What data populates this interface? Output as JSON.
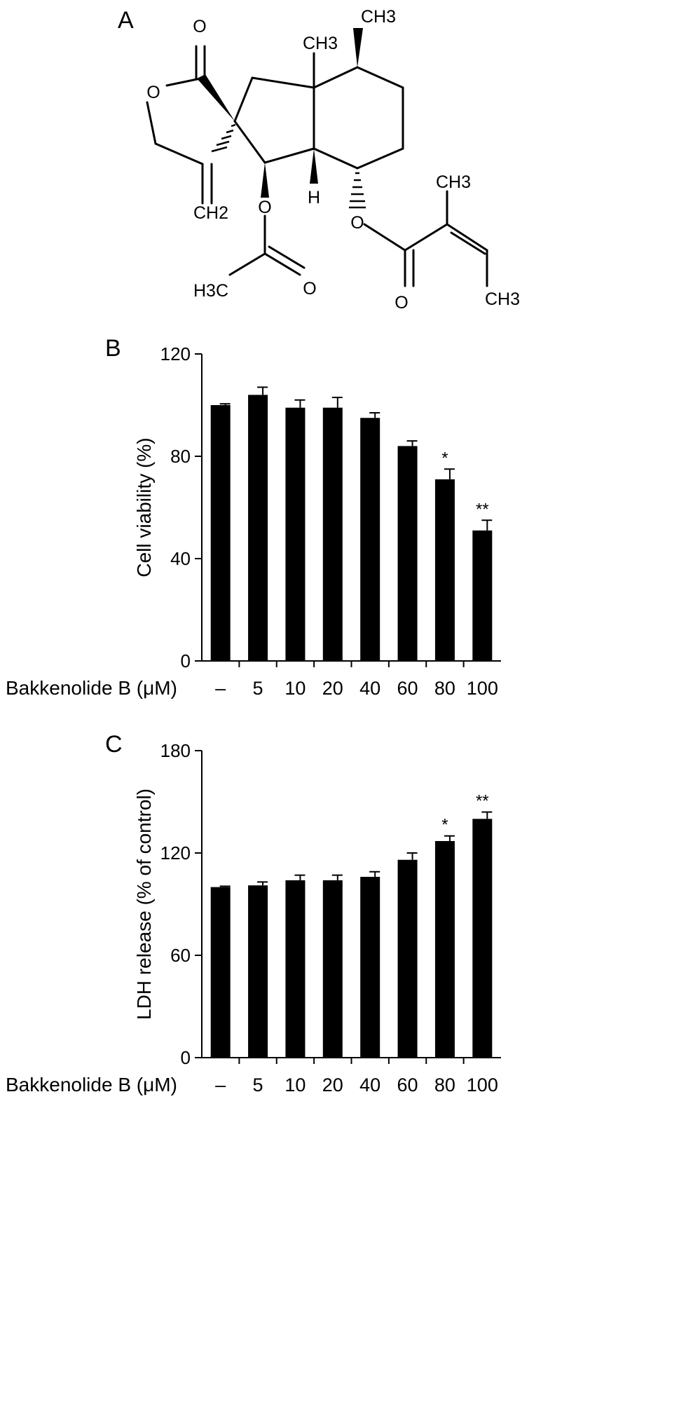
{
  "panels": {
    "A": {
      "letter": "A",
      "atoms": {
        "o_carbonyl": "O",
        "o_ring": "O",
        "ch3_top_right": "CH3",
        "ch3_angular": "CH3",
        "ch2_methylene": "CH2",
        "o_acetoxy": "O",
        "h_ring": "H",
        "o_ester": "O",
        "ch3_angelate": "CH3",
        "h3c_acetyl": "H3C",
        "o_acetyl": "O",
        "o_angelate": "O",
        "ch3_terminal": "CH3"
      }
    },
    "B": {
      "letter": "B"
    },
    "C": {
      "letter": "C"
    }
  },
  "chart_data": [
    {
      "type": "bar",
      "panel": "B",
      "ylabel": "Cell viability (%)",
      "xlabel": "Bakkenolide B (μM)",
      "categories": [
        "–",
        "5",
        "10",
        "20",
        "40",
        "60",
        "80",
        "100"
      ],
      "values": [
        100,
        104,
        99,
        99,
        95,
        84,
        71,
        51
      ],
      "errors": [
        0.5,
        3,
        3,
        4,
        2,
        2,
        4,
        4
      ],
      "significance": [
        "",
        "",
        "",
        "",
        "",
        "",
        "*",
        "**"
      ],
      "ylim": [
        0,
        120
      ],
      "yticks": [
        "0",
        "40",
        "80",
        "120"
      ],
      "bar_color": "#000000",
      "grid": false
    },
    {
      "type": "bar",
      "panel": "C",
      "ylabel": "LDH release (% of control)",
      "xlabel": "Bakkenolide B (μM)",
      "categories": [
        "–",
        "5",
        "10",
        "20",
        "40",
        "60",
        "80",
        "100"
      ],
      "values": [
        100,
        101,
        104,
        104,
        106,
        116,
        127,
        140
      ],
      "errors": [
        0.5,
        2,
        3,
        3,
        3,
        4,
        3,
        4
      ],
      "significance": [
        "",
        "",
        "",
        "",
        "",
        "",
        "*",
        "**"
      ],
      "ylim": [
        0,
        180
      ],
      "yticks": [
        "0",
        "60",
        "120",
        "180"
      ],
      "bar_color": "#000000",
      "grid": false
    }
  ]
}
